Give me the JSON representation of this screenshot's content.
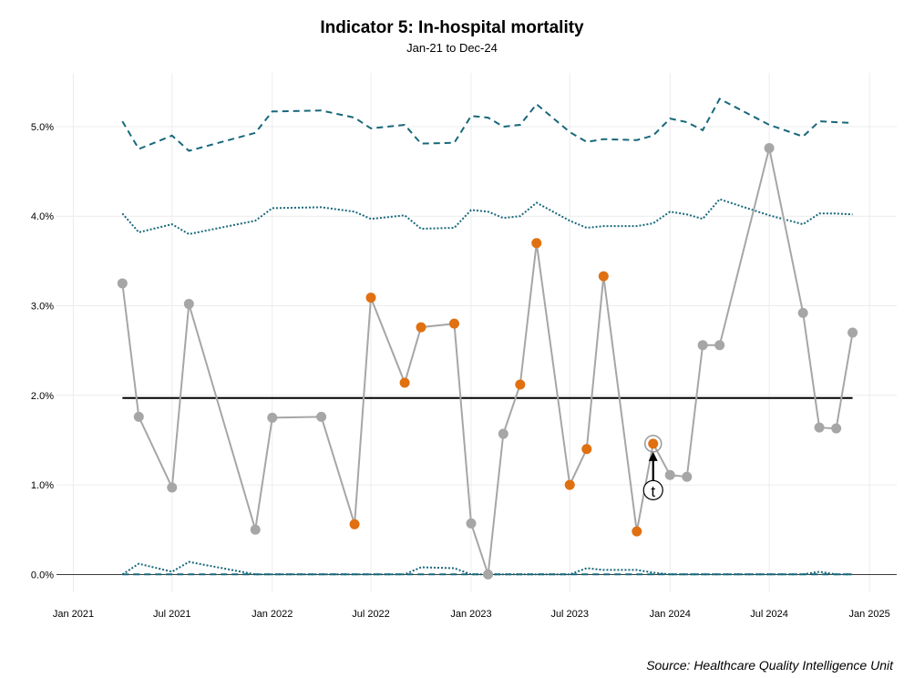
{
  "chart_data": {
    "type": "line",
    "title": "Indicator 5: In-hospital mortality",
    "subtitle": "Jan-21 to Dec-24",
    "caption": "Source: Healthcare Quality Intelligence Unit",
    "xlabel": "",
    "ylabel": "",
    "x_ticks": [
      "Jan 2021",
      "Jul 2021",
      "Jan 2022",
      "Jul 2022",
      "Jan 2023",
      "Jul 2023",
      "Jan 2024",
      "Jul 2024",
      "Jan 2025"
    ],
    "y_ticks": [
      "0.0%",
      "1.0%",
      "2.0%",
      "3.0%",
      "4.0%",
      "5.0%"
    ],
    "ylim": [
      -0.2,
      5.6
    ],
    "xlim": [
      "2020-12-01",
      "2025-02-20"
    ],
    "grid": true,
    "centre_line": 1.97,
    "x": [
      "2021-04-01",
      "2021-05-01",
      "2021-07-01",
      "2021-08-01",
      "2021-12-01",
      "2022-01-01",
      "2022-04-01",
      "2022-06-01",
      "2022-07-01",
      "2022-09-01",
      "2022-10-01",
      "2022-12-01",
      "2023-01-01",
      "2023-02-01",
      "2023-03-01",
      "2023-04-01",
      "2023-05-01",
      "2023-07-01",
      "2023-08-01",
      "2023-09-01",
      "2023-11-01",
      "2023-12-01",
      "2024-01-01",
      "2024-02-01",
      "2024-03-01",
      "2024-04-01",
      "2024-07-01",
      "2024-09-01",
      "2024-10-01",
      "2024-11-01",
      "2024-12-01"
    ],
    "series": [
      {
        "values": [
          3.25,
          1.76,
          0.97,
          3.02,
          0.5,
          1.75,
          1.76,
          0.56,
          3.09,
          2.14,
          2.76,
          2.8,
          0.57,
          0.0,
          1.57,
          2.12,
          3.7,
          1.0,
          1.4,
          3.33,
          0.48,
          1.46,
          1.11,
          1.09,
          2.56,
          2.56,
          4.76,
          2.92,
          1.64,
          1.63,
          2.7
        ],
        "highlight": [
          false,
          false,
          false,
          false,
          false,
          false,
          false,
          true,
          true,
          true,
          true,
          true,
          false,
          false,
          false,
          true,
          true,
          true,
          true,
          true,
          true,
          true,
          false,
          false,
          false,
          false,
          false,
          false,
          false,
          false,
          false
        ],
        "color": "#a6a6a6",
        "highlight_color": "#e07010"
      }
    ],
    "control_limits": {
      "upper_3sigma": [
        5.06,
        4.75,
        4.9,
        4.73,
        4.93,
        5.17,
        5.18,
        5.1,
        4.98,
        5.02,
        4.81,
        4.82,
        5.12,
        5.1,
        5.0,
        5.02,
        5.25,
        4.94,
        4.83,
        4.86,
        4.85,
        4.9,
        5.09,
        5.05,
        4.96,
        5.31,
        5.02,
        4.89,
        5.06,
        5.05,
        5.04
      ],
      "upper_2sigma": [
        4.03,
        3.82,
        3.91,
        3.8,
        3.95,
        4.09,
        4.1,
        4.05,
        3.97,
        4.01,
        3.86,
        3.87,
        4.07,
        4.05,
        3.98,
        4.0,
        4.15,
        3.95,
        3.87,
        3.89,
        3.89,
        3.92,
        4.05,
        4.02,
        3.97,
        4.19,
        4.01,
        3.91,
        4.03,
        4.03,
        4.02
      ],
      "lower_2sigma": [
        0.0,
        0.12,
        0.03,
        0.14,
        0.0,
        0.0,
        0.0,
        0.0,
        0.0,
        0.0,
        0.08,
        0.07,
        0.0,
        0.0,
        0.0,
        0.0,
        0.0,
        0.0,
        0.07,
        0.05,
        0.05,
        0.02,
        0.0,
        0.0,
        0.0,
        0.0,
        0.0,
        0.0,
        0.03,
        0.0,
        0.0
      ],
      "lower_3sigma": [
        0,
        0,
        0,
        0,
        0,
        0,
        0,
        0,
        0,
        0,
        0,
        0,
        0,
        0,
        0,
        0,
        0,
        0,
        0,
        0,
        0,
        0,
        0,
        0,
        0,
        0,
        0,
        0,
        0,
        0,
        0
      ],
      "color": "#17687a"
    },
    "annotation": {
      "label": "t",
      "x": "2023-12-01",
      "y": 1.46
    }
  }
}
